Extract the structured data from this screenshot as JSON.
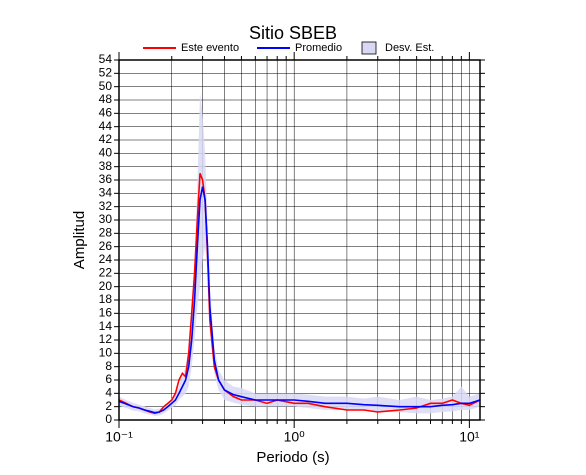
{
  "chart_data": {
    "type": "line",
    "title": "Sitio SBEB",
    "xlabel": "Periodo (s)",
    "ylabel": "Amplitud",
    "xscale": "log",
    "grid": true,
    "legend": "top",
    "xlim": [
      0.1,
      11.5
    ],
    "ylim": [
      0,
      54
    ],
    "xticks": [
      {
        "value": 0.1,
        "label": "10⁻¹"
      },
      {
        "value": 1,
        "label": "10⁰"
      },
      {
        "value": 10,
        "label": "10¹"
      }
    ],
    "xminorticks": [
      0.2,
      0.3,
      0.4,
      0.5,
      0.6,
      0.7,
      0.8,
      0.9,
      2,
      3,
      4,
      5,
      6,
      7,
      8,
      9
    ],
    "yticks": [
      0,
      2,
      4,
      6,
      8,
      10,
      12,
      14,
      16,
      18,
      20,
      22,
      24,
      26,
      28,
      30,
      32,
      34,
      36,
      38,
      40,
      42,
      44,
      46,
      48,
      50,
      52,
      54
    ],
    "x": [
      0.1,
      0.11,
      0.12,
      0.13,
      0.14,
      0.15,
      0.16,
      0.17,
      0.18,
      0.19,
      0.2,
      0.21,
      0.22,
      0.23,
      0.24,
      0.25,
      0.26,
      0.27,
      0.28,
      0.29,
      0.3,
      0.31,
      0.32,
      0.33,
      0.35,
      0.37,
      0.4,
      0.45,
      0.5,
      0.6,
      0.7,
      0.8,
      1,
      1.2,
      1.5,
      2,
      2.5,
      3,
      4,
      5,
      6,
      7,
      8,
      9,
      10,
      11.5
    ],
    "band": {
      "name": "Desv. Est.",
      "color": "#d8d8f4",
      "upper": [
        3.5,
        3,
        2.6,
        2.3,
        2,
        1.8,
        1.6,
        1.7,
        2,
        2.6,
        3.2,
        3.8,
        5,
        6.5,
        8,
        11,
        16,
        24,
        35,
        49,
        46,
        40,
        30,
        20,
        11,
        7.5,
        6,
        5,
        4.8,
        4,
        4,
        4,
        4,
        3.8,
        3.5,
        3.5,
        3.2,
        3.5,
        3,
        3.5,
        3,
        3.2,
        3.5,
        5,
        3.5,
        4
      ],
      "lower": [
        2.1,
        1.8,
        1.4,
        1.3,
        1,
        0.8,
        0.6,
        0.7,
        1,
        1.4,
        1.8,
        2.2,
        3,
        3.5,
        4,
        5,
        8,
        12,
        17,
        20,
        24,
        26,
        22,
        14,
        7,
        4.5,
        3,
        2.6,
        2.3,
        2,
        2,
        2,
        2,
        1.8,
        1.5,
        1.5,
        1.4,
        1.2,
        1.2,
        1,
        1,
        1.2,
        1.3,
        1.5,
        1.5,
        2
      ]
    },
    "series": [
      {
        "name": "Este evento",
        "color": "#ff0000",
        "values": [
          3,
          2.5,
          2,
          1.8,
          1.5,
          1.2,
          1,
          1.2,
          2,
          2.5,
          3,
          4,
          6,
          7,
          6.5,
          10,
          16,
          22,
          30,
          37,
          36,
          33,
          25,
          15,
          8,
          6,
          4.5,
          3.5,
          3,
          3,
          2.5,
          3,
          2.5,
          2.5,
          2,
          1.5,
          1.5,
          1.2,
          1.5,
          1.8,
          2.5,
          2.5,
          3,
          2.5,
          2.2,
          3
        ]
      },
      {
        "name": "Promedio",
        "color": "#0000ff",
        "values": [
          2.8,
          2.4,
          2,
          1.8,
          1.5,
          1.3,
          1.1,
          1.2,
          1.5,
          2,
          2.5,
          3,
          4,
          5,
          6,
          8,
          12,
          18,
          26,
          33,
          35,
          33,
          26,
          17,
          9,
          6,
          4.5,
          3.8,
          3.5,
          3,
          3,
          3,
          3,
          2.8,
          2.5,
          2.5,
          2.3,
          2.2,
          2,
          2,
          2,
          2.2,
          2.3,
          2.5,
          2.5,
          3
        ]
      }
    ]
  }
}
